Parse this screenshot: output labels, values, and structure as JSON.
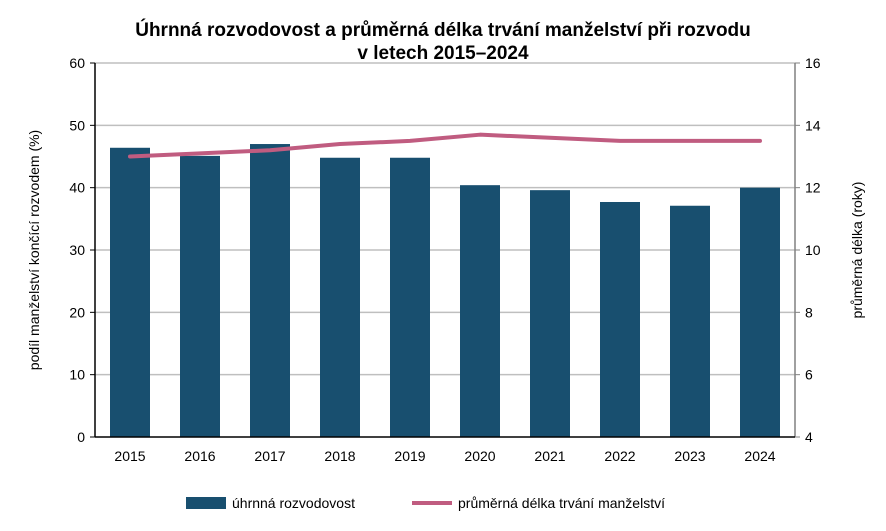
{
  "chart_data": {
    "type": "bar",
    "title": [
      "Úhrnná rozvodovost a průměrná délka trvání manželství při rozvodu",
      "v letech 2015–2024"
    ],
    "categories": [
      "2015",
      "2016",
      "2017",
      "2018",
      "2019",
      "2020",
      "2021",
      "2022",
      "2023",
      "2024"
    ],
    "series": [
      {
        "name": "úhrnná rozvodovost",
        "type": "bar",
        "axis": "left",
        "color": "#184f6f",
        "values": [
          46.4,
          45.1,
          47.0,
          44.8,
          44.8,
          40.4,
          39.6,
          37.7,
          37.1,
          40.0
        ]
      },
      {
        "name": "průměrná délka trvání manželství",
        "type": "line",
        "axis": "right",
        "color": "#c05c80",
        "values": [
          13.0,
          13.1,
          13.2,
          13.4,
          13.5,
          13.7,
          13.6,
          13.5,
          13.5,
          13.5
        ]
      }
    ],
    "ylabel": "podíl manželství  končící rozvodem (%)",
    "y2label": "průměrná délka (roky)",
    "ylim": [
      0,
      60
    ],
    "yticks": [
      "0",
      "10",
      "20",
      "30",
      "40",
      "50",
      "60"
    ],
    "y2lim": [
      4,
      16
    ],
    "y2ticks": [
      "4",
      "6",
      "8",
      "10",
      "12",
      "14",
      "16"
    ],
    "grid": true,
    "legend_position": "bottom"
  }
}
